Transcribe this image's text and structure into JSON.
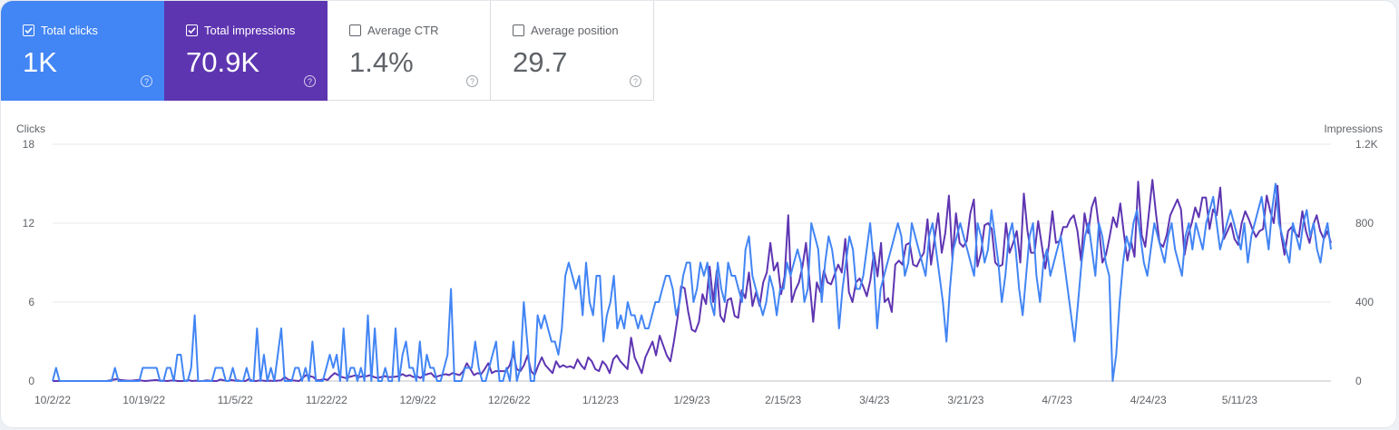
{
  "metrics": [
    {
      "label": "Total clicks",
      "value": "1K",
      "checked": true,
      "color": "#4285f4"
    },
    {
      "label": "Total impressions",
      "value": "70.9K",
      "checked": true,
      "color": "#5e35b1"
    },
    {
      "label": "Average CTR",
      "value": "1.4%",
      "checked": false
    },
    {
      "label": "Average position",
      "value": "29.7",
      "checked": false
    }
  ],
  "icons": {
    "checkbox": "checkbox-icon",
    "help": "help-circle-icon"
  },
  "chart_data": {
    "type": "line",
    "left_axis_title": "Clicks",
    "right_axis_title": "Impressions",
    "left_ticks": [
      "0",
      "6",
      "12",
      "18"
    ],
    "right_ticks": [
      "0",
      "400",
      "800",
      "1.2K"
    ],
    "ylim_left": [
      0,
      18
    ],
    "ylim_right": [
      0,
      1200
    ],
    "x_tick_labels": [
      "10/2/22",
      "10/19/22",
      "11/5/22",
      "11/22/22",
      "12/9/22",
      "12/26/22",
      "1/12/23",
      "1/29/23",
      "2/15/23",
      "3/4/23",
      "3/21/23",
      "4/7/23",
      "4/24/23",
      "5/11/23"
    ],
    "x_start": "10/2/22",
    "x_end": "5/28/23",
    "grid": true,
    "legend": "top metric tiles",
    "series": [
      {
        "name": "Total impressions",
        "color": "#5e35b1",
        "axis": "right",
        "values": [
          0,
          0,
          0,
          0,
          0,
          0,
          0,
          0,
          0,
          0,
          0,
          0,
          0,
          0,
          0,
          0,
          3,
          7,
          10,
          5,
          3,
          2,
          2,
          3,
          5,
          2,
          0,
          2,
          3,
          5,
          2,
          2,
          0,
          2,
          3,
          0,
          0,
          0,
          5,
          0,
          2,
          0,
          0,
          3,
          2,
          0,
          0,
          8,
          3,
          0,
          5,
          2,
          3,
          0,
          0,
          10,
          0,
          0,
          3,
          2,
          0,
          2,
          0,
          2,
          3,
          20,
          7,
          3,
          2,
          0,
          15,
          30,
          25,
          20,
          3,
          5,
          10,
          5,
          25,
          40,
          30,
          20,
          15,
          20,
          25,
          30,
          20,
          25,
          25,
          30,
          20,
          15,
          20,
          25,
          20,
          20,
          22,
          25,
          35,
          25,
          30,
          20,
          25,
          15,
          30,
          35,
          40,
          20,
          25,
          30,
          35,
          30,
          40,
          35,
          30,
          50,
          90,
          60,
          30,
          40,
          35,
          60,
          90,
          40,
          50,
          50,
          50,
          50,
          80,
          140,
          60,
          50,
          80,
          130,
          50,
          30,
          80,
          120,
          80,
          60,
          40,
          100,
          70,
          80,
          70,
          75,
          65,
          110,
          80,
          60,
          120,
          100,
          60,
          50,
          100,
          80,
          40,
          110,
          130,
          100,
          80,
          60,
          220,
          120,
          80,
          40,
          120,
          160,
          200,
          130,
          230,
          180,
          130,
          100,
          200,
          320,
          480,
          470,
          350,
          260,
          250,
          300,
          440,
          390,
          580,
          400,
          560,
          330,
          300,
          410,
          420,
          330,
          320,
          460,
          420,
          550,
          380,
          450,
          380,
          500,
          550,
          700,
          560,
          600,
          440,
          530,
          840,
          400,
          460,
          500,
          580,
          700,
          500,
          300,
          500,
          450,
          560,
          500,
          490,
          540,
          590,
          550,
          720,
          450,
          400,
          500,
          520,
          480,
          430,
          510,
          650,
          530,
          700,
          400,
          420,
          350,
          590,
          610,
          590,
          690,
          700,
          590,
          580,
          620,
          650,
          820,
          590,
          720,
          850,
          650,
          750,
          940,
          620,
          850,
          700,
          680,
          710,
          850,
          920,
          580,
          650,
          790,
          800,
          770,
          600,
          580,
          590,
          800,
          650,
          700,
          760,
          600,
          950,
          760,
          650,
          650,
          810,
          690,
          570,
          690,
          860,
          700,
          710,
          780,
          780,
          820,
          840,
          760,
          610,
          850,
          750,
          880,
          930,
          780,
          600,
          640,
          730,
          830,
          780,
          900,
          750,
          610,
          710,
          630,
          1010,
          740,
          680,
          850,
          1020,
          850,
          700,
          680,
          740,
          840,
          880,
          920,
          870,
          640,
          740,
          800,
          880,
          830,
          930,
          930,
          770,
          870,
          840,
          980,
          720,
          760,
          800,
          720,
          690,
          800,
          860,
          820,
          770,
          730,
          760,
          770,
          940,
          860,
          800,
          990,
          750,
          640,
          760,
          780,
          750,
          730,
          860,
          760,
          700,
          790,
          840,
          760,
          720,
          760,
          700
        ]
      },
      {
        "name": "Total clicks",
        "color": "#4285f4",
        "axis": "left",
        "values": [
          0,
          1,
          0,
          0,
          0,
          0,
          0,
          0,
          0,
          0,
          0,
          0,
          0,
          0,
          0,
          0,
          0,
          0,
          1,
          0,
          0,
          0,
          0,
          0,
          0,
          0,
          1,
          1,
          1,
          1,
          1,
          0,
          0,
          1,
          1,
          0,
          2,
          2,
          0,
          0,
          1,
          5,
          0,
          0,
          0,
          0,
          0,
          1,
          1,
          1,
          0,
          0,
          1,
          0,
          0,
          0,
          1,
          0,
          0,
          4,
          0,
          2,
          0,
          1,
          0,
          2,
          4,
          0,
          0,
          0,
          1,
          1,
          0,
          1,
          0,
          3,
          0,
          0,
          0,
          1,
          2,
          1,
          2,
          0,
          4,
          0,
          1,
          1,
          0,
          1,
          0,
          5,
          0,
          4,
          0,
          0,
          1,
          0,
          0,
          4,
          0,
          2,
          3,
          1,
          1,
          0,
          3,
          0,
          2,
          1,
          1,
          0,
          0,
          1,
          2,
          7,
          0,
          0,
          0,
          1,
          1,
          1,
          3,
          1,
          0,
          0,
          1,
          2,
          3,
          0,
          0,
          1,
          0,
          3,
          0,
          1,
          6,
          3,
          0,
          0,
          5,
          4,
          5,
          4,
          3,
          3,
          2,
          4,
          8,
          9,
          8,
          7,
          8,
          5,
          9,
          6,
          5,
          8,
          8,
          3,
          5,
          6,
          8,
          4,
          5,
          4,
          6,
          5,
          5,
          4,
          5,
          4,
          4,
          5,
          6,
          6,
          7,
          8,
          8,
          7,
          5,
          6,
          8,
          9,
          9,
          6,
          7,
          9,
          8,
          9,
          6,
          5,
          9,
          7,
          6,
          9,
          8,
          8,
          7,
          6,
          10,
          11,
          8,
          7,
          6,
          5,
          6,
          8,
          7,
          5,
          7,
          7,
          9,
          8,
          9,
          10,
          9,
          6,
          7,
          12,
          11,
          10,
          6,
          9,
          11,
          10,
          8,
          4,
          7,
          9,
          11,
          10,
          7,
          7,
          8,
          10,
          12,
          9,
          4,
          7,
          8,
          9,
          10,
          11,
          12,
          11,
          8,
          9,
          12,
          11,
          10,
          9,
          8,
          11,
          12,
          10,
          8,
          6,
          3,
          7,
          10,
          11,
          12,
          11,
          10,
          9,
          8,
          12,
          11,
          9,
          10,
          13,
          11,
          9,
          6,
          8,
          11,
          12,
          10,
          7,
          5,
          8,
          11,
          12,
          8,
          6,
          9,
          10,
          8,
          9,
          10,
          11,
          9,
          7,
          5,
          3,
          6,
          9,
          11,
          12,
          10,
          8,
          12,
          11,
          9,
          8,
          0,
          2,
          6,
          9,
          11,
          10,
          12,
          13,
          11,
          9,
          8,
          10,
          12,
          11,
          10,
          9,
          11,
          12,
          10,
          9,
          8,
          11,
          12,
          10,
          12,
          11,
          10,
          12,
          13,
          14,
          12,
          10,
          11,
          12,
          13,
          12,
          11,
          10,
          12,
          9,
          11,
          12,
          13,
          14,
          12,
          10,
          13,
          15,
          12,
          11,
          10,
          9,
          12,
          11,
          10,
          12,
          13,
          11,
          12,
          10,
          9,
          11,
          12,
          10
        ]
      }
    ]
  }
}
